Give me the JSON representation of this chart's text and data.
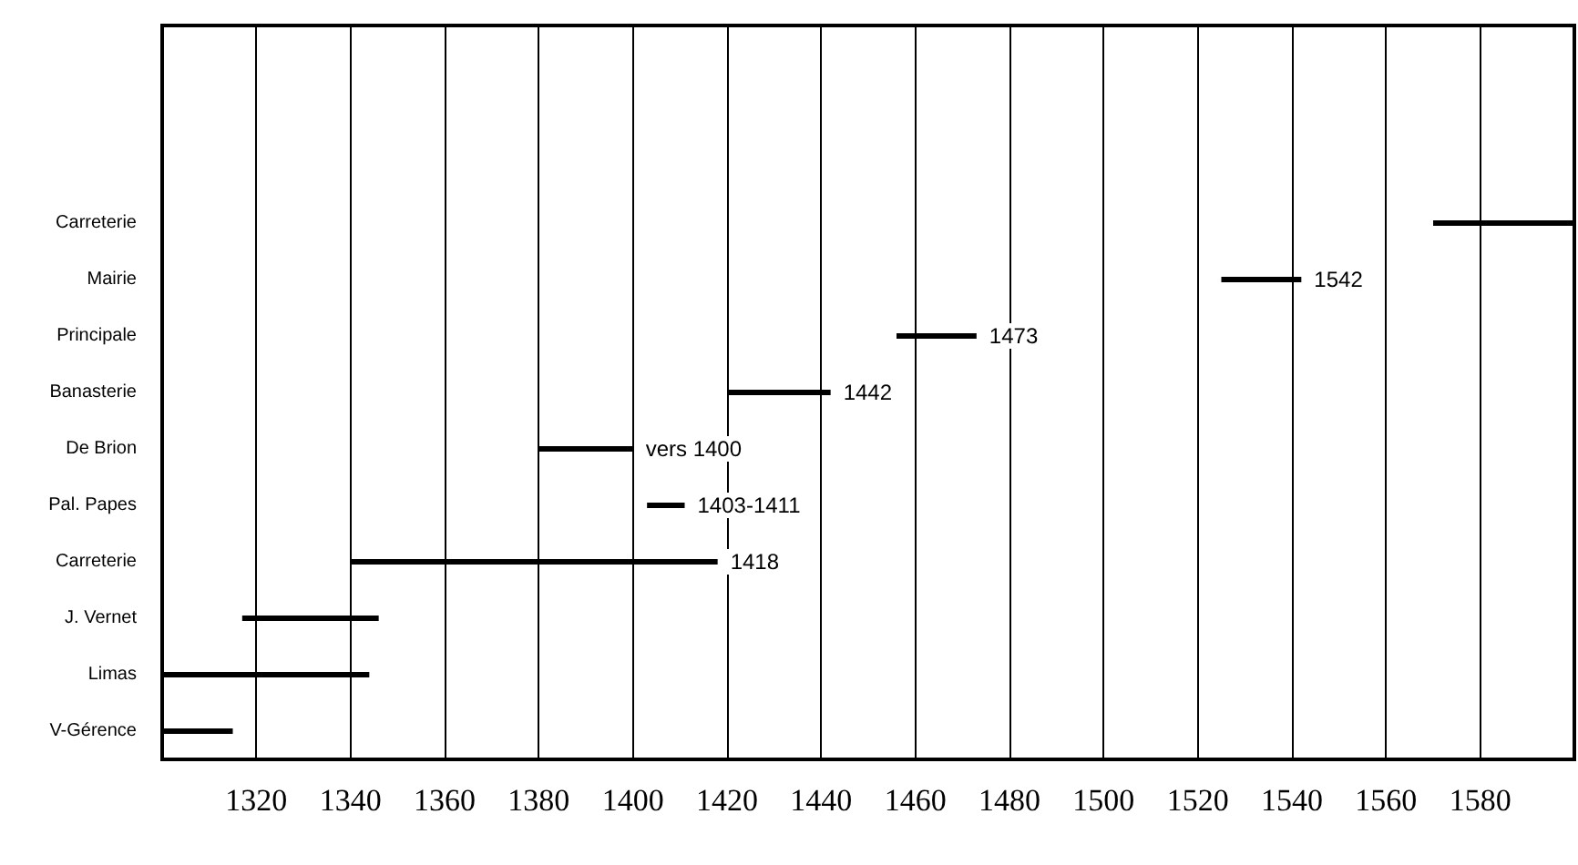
{
  "chart_data": {
    "type": "bar",
    "orientation": "horizontal",
    "color": "#000000",
    "grid": "x",
    "categories": [
      null,
      null,
      null,
      "Carreterie",
      "Mairie",
      "Principale",
      "Banasterie",
      "De Brion",
      "Pal. Papes",
      "Carreterie",
      "J. Vernet",
      "Limas",
      "V-Gérence"
    ],
    "base": [
      null,
      null,
      null,
      1570,
      1525,
      1456,
      1420,
      1380,
      1403,
      1340,
      1317,
      1300,
      1300
    ],
    "values": [
      null,
      null,
      null,
      30,
      17,
      17,
      22,
      20,
      8,
      78,
      29,
      44,
      15
    ],
    "value_labels": [
      null,
      null,
      null,
      null,
      "1542",
      "1473",
      "1442",
      "vers 1400",
      "1403-1411",
      "1418",
      null,
      null,
      null
    ],
    "xlim": [
      1300,
      1600
    ],
    "xticks": [
      1320,
      1340,
      1360,
      1380,
      1400,
      1420,
      1440,
      1460,
      1480,
      1500,
      1520,
      1540,
      1560,
      1580
    ]
  }
}
